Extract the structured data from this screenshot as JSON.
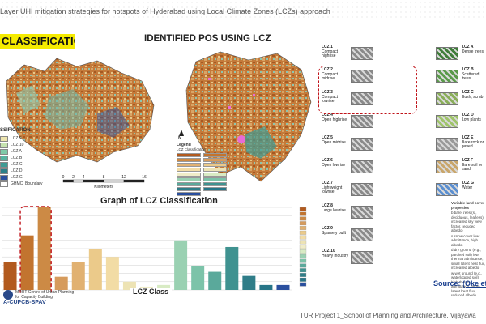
{
  "header": {
    "title": "Layer UHI mitigation strategies for hotspots of Hyderabad using Local Climate Zones (LCZs) approach"
  },
  "left_map": {
    "heading": "CLASSIFICATION",
    "legend_title": "SSIFICATION",
    "legend_items": [
      {
        "label": "LCZ 9",
        "color": "#eee6b0"
      },
      {
        "label": "LCZ 10",
        "color": "#c7e3b0"
      },
      {
        "label": "LCZ A",
        "color": "#7fc9a8"
      },
      {
        "label": "LCZ B",
        "color": "#58b3a0"
      },
      {
        "label": "LCZ C",
        "color": "#3f9b94"
      },
      {
        "label": "LCZ D",
        "color": "#2b8089"
      },
      {
        "label": "LCZ G",
        "color": "#2a4f9e"
      },
      {
        "label": "GHMC_Boundary",
        "color": "#ffffff"
      }
    ],
    "scale_labels": [
      "0",
      "2",
      "4",
      "8",
      "12",
      "16"
    ],
    "scale_unit": "Kilometers"
  },
  "mid_map": {
    "heading": "IDENTIFIED POS USING LCZ",
    "legend_title": "Legend",
    "legend_subtitle": "LCZ Classification",
    "north": "N"
  },
  "chart": {
    "heading": "Graph of LCZ Classification",
    "xlabel": "LCZ Class"
  },
  "chart_data": {
    "type": "bar",
    "title": "Graph of LCZ Classification",
    "xlabel": "LCZ Class",
    "ylabel": "",
    "categories": [
      "LCZ 1",
      "LCZ 2",
      "LCZ 3",
      "LCZ 4",
      "LCZ 5",
      "LCZ 6",
      "LCZ 7",
      "LCZ 8",
      "LCZ 9",
      "LCZ 10",
      "LCZ A",
      "LCZ B",
      "LCZ C",
      "LCZ D",
      "LCZ E",
      "LCZ F",
      "LCZ G"
    ],
    "values": [
      34,
      66,
      100,
      16,
      34,
      50,
      40,
      10,
      4,
      6,
      60,
      29,
      22,
      52,
      17,
      6,
      6
    ],
    "colors": [
      "#b25a1e",
      "#c2742f",
      "#cc8a45",
      "#d69b5c",
      "#e1b171",
      "#ebca8a",
      "#f2dca5",
      "#ede3b4",
      "#f0ecc8",
      "#d8ebc4",
      "#9ad1b2",
      "#7cc3a9",
      "#5aa99b",
      "#3f9290",
      "#2f7d88",
      "#277587",
      "#2a4f9e"
    ],
    "ylim": [
      0,
      100
    ],
    "grid": true,
    "legend": "right"
  },
  "lcz_panel": {
    "built": [
      {
        "code": "LCZ 1",
        "name": "Compact highrise"
      },
      {
        "code": "LCZ 2",
        "name": "Compact midrise"
      },
      {
        "code": "LCZ 3",
        "name": "Compact lowrise"
      },
      {
        "code": "LCZ 4",
        "name": "Open highrise"
      },
      {
        "code": "LCZ 5",
        "name": "Open midrise"
      },
      {
        "code": "LCZ 6",
        "name": "Open lowrise"
      },
      {
        "code": "LCZ 7",
        "name": "Lightweight lowrise"
      },
      {
        "code": "LCZ 8",
        "name": "Large lowrise"
      },
      {
        "code": "LCZ 9",
        "name": "Sparsely built"
      },
      {
        "code": "LCZ 10",
        "name": "Heavy industry"
      }
    ],
    "land": [
      {
        "code": "LCZ A",
        "name": "Dense trees"
      },
      {
        "code": "LCZ B",
        "name": "Scattered trees"
      },
      {
        "code": "LCZ C",
        "name": "Bush, scrub"
      },
      {
        "code": "LCZ D",
        "name": "Low plants"
      },
      {
        "code": "LCZ E",
        "name": "Bare rock or paved"
      },
      {
        "code": "LCZ F",
        "name": "Bare soil or sand"
      },
      {
        "code": "LCZ G",
        "name": "Water"
      }
    ],
    "variable_title": "Variable land cover properties",
    "variable_items": [
      "b  bare trees (s., deciduous, leafless) increased sky view factor, reduced albedo",
      "s  snow cover low admittance, high albedo",
      "d  dry ground (e.g., parched soil) low thermal admittance, small latent heat flux, increased albedo",
      "w  wet ground (e.g., waterlogged soil) high thermal admittance, large latent heat flux, reduced albedo"
    ]
  },
  "source": {
    "prefix": "Source: ",
    "ref": "(Oke et"
  },
  "footer": {
    "text": "TUR Project 1_School of Planning and Architecture, Vijayawa"
  },
  "logo": {
    "line1": "MRUT Centre of Urban Planning",
    "line2": "for Capacity Building",
    "brand": "A-CUPCB-SPAV"
  },
  "colors": {
    "accent_highlight": "#f5eb00",
    "dash_red": "#c0141a",
    "source_blue": "#1a3f8f"
  }
}
